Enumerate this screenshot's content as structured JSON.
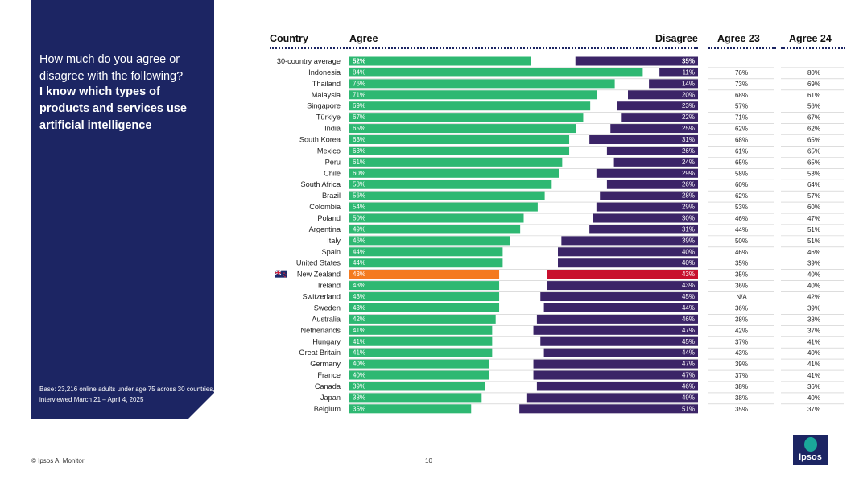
{
  "panel": {
    "question": "How much do you agree or disagree with the following?",
    "statement": "I know which types of products and services use artificial intelligence",
    "base_note": "Base: 23,216 online adults under age 75 across 30 countries, interviewed March 21 – April 4, 2025"
  },
  "headers": {
    "country": "Country",
    "agree": "Agree",
    "disagree": "Disagree",
    "agree23": "Agree 23",
    "agree24": "Agree 24"
  },
  "footer": {
    "copyright": "© Ipsos AI Monitor",
    "page": "10",
    "logo_text": "Ipsos"
  },
  "colors": {
    "agree": "#2eb872",
    "disagree": "#3b2467",
    "highlight_agree": "#f47a20",
    "highlight_disagree": "#c8102e",
    "panel": "#1c2563"
  },
  "chart_data": {
    "type": "bar",
    "title": "I know which types of products and services use artificial intelligence",
    "highlight": "New Zealand",
    "highlight_icon": "new-zealand-flag-icon",
    "series": [
      {
        "name": "Agree",
        "values": [
          52,
          84,
          76,
          71,
          69,
          67,
          65,
          63,
          63,
          61,
          60,
          58,
          56,
          54,
          50,
          49,
          46,
          44,
          44,
          43,
          43,
          43,
          43,
          42,
          41,
          41,
          41,
          40,
          40,
          39,
          38,
          35
        ]
      },
      {
        "name": "Disagree",
        "values": [
          35,
          11,
          14,
          20,
          23,
          22,
          25,
          31,
          26,
          24,
          29,
          26,
          28,
          29,
          30,
          31,
          39,
          40,
          40,
          43,
          43,
          45,
          44,
          46,
          47,
          45,
          44,
          47,
          47,
          46,
          49,
          51
        ]
      }
    ],
    "categories": [
      "30-country average",
      "Indonesia",
      "Thailand",
      "Malaysia",
      "Singapore",
      "Türkiye",
      "India",
      "South Korea",
      "Mexico",
      "Peru",
      "Chile",
      "South Africa",
      "Brazil",
      "Colombia",
      "Poland",
      "Argentina",
      "Italy",
      "Spain",
      "United States",
      "New Zealand",
      "Ireland",
      "Switzerland",
      "Sweden",
      "Australia",
      "Netherlands",
      "Hungary",
      "Great Britain",
      "Germany",
      "France",
      "Canada",
      "Japan",
      "Belgium"
    ],
    "labels": {
      "agree": [
        "52%",
        "84%",
        "76%",
        "71%",
        "69%",
        "67%",
        "65%",
        "63%",
        "63%",
        "61%",
        "60%",
        "58%",
        "56%",
        "54%",
        "50%",
        "49%",
        "46%",
        "44%",
        "44%",
        "43%",
        "43%",
        "43%",
        "43%",
        "42%",
        "41%",
        "41%",
        "41%",
        "40%",
        "40%",
        "39%",
        "38%",
        "35%"
      ],
      "disagree": [
        "35%",
        "11%",
        "14%",
        "20%",
        "23%",
        "22%",
        "25%",
        "31%",
        "26%",
        "24%",
        "29%",
        "26%",
        "28%",
        "29%",
        "30%",
        "31%",
        "39%",
        "40%",
        "40%",
        "43%",
        "43%",
        "45%",
        "44%",
        "46%",
        "47%",
        "45%",
        "44%",
        "47%",
        "47%",
        "46%",
        "49%",
        "51%"
      ],
      "agree23": [
        "",
        "76%",
        "73%",
        "68%",
        "57%",
        "71%",
        "62%",
        "68%",
        "61%",
        "65%",
        "58%",
        "60%",
        "62%",
        "53%",
        "46%",
        "44%",
        "50%",
        "46%",
        "35%",
        "35%",
        "36%",
        "N/A",
        "36%",
        "38%",
        "42%",
        "37%",
        "43%",
        "39%",
        "37%",
        "38%",
        "38%",
        "35%"
      ],
      "agree24": [
        "",
        "80%",
        "69%",
        "61%",
        "56%",
        "67%",
        "62%",
        "65%",
        "65%",
        "65%",
        "53%",
        "64%",
        "57%",
        "60%",
        "47%",
        "51%",
        "51%",
        "46%",
        "39%",
        "40%",
        "40%",
        "42%",
        "39%",
        "38%",
        "37%",
        "41%",
        "40%",
        "41%",
        "41%",
        "36%",
        "40%",
        "37%"
      ]
    },
    "xlim": [
      0,
      100
    ]
  }
}
